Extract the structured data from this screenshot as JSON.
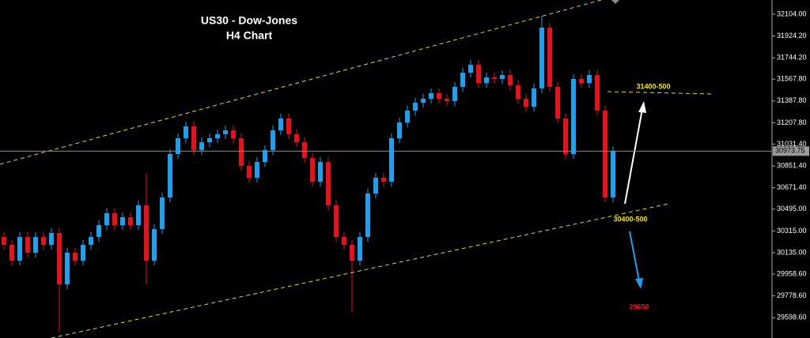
{
  "chart_data": {
    "type": "candlestick",
    "title": "US30 - Dow-Jones",
    "subtitle": "H4 Chart",
    "annotations": {
      "resistance": "31400-500",
      "support": "30400-500",
      "target": "29650"
    },
    "up_color": "#1ea0f0",
    "down_color": "#e8101a",
    "ylim": [
      29431,
      32221
    ],
    "yticks": [
      {
        "value": 32104,
        "label": "32104.00"
      },
      {
        "value": 31924.2,
        "label": "31924.20"
      },
      {
        "value": 31744.2,
        "label": "31744.20"
      },
      {
        "value": 31567.8,
        "label": "31567.80"
      },
      {
        "value": 31387.8,
        "label": "31387.80"
      },
      {
        "value": 31207.8,
        "label": "31207.80"
      },
      {
        "value": 31031.4,
        "label": "31031.40"
      },
      {
        "value": 30851.4,
        "label": "30851.40"
      },
      {
        "value": 30671.4,
        "label": "30671.40"
      },
      {
        "value": 30495,
        "label": "30495.00"
      },
      {
        "value": 30315,
        "label": "30315.00"
      },
      {
        "value": 30135,
        "label": "30135.00"
      },
      {
        "value": 29958.6,
        "label": "29958.60"
      },
      {
        "value": 29778.6,
        "label": "29778.60"
      },
      {
        "value": 29598.6,
        "label": "29598.60"
      }
    ],
    "last_price": 30973.75,
    "open": [
      30265,
      30200,
      30069,
      30265,
      30135,
      30265,
      30200,
      30298,
      29874,
      30135,
      30069,
      30200,
      30265,
      30363,
      30461,
      30363,
      30428,
      30363,
      30526,
      30069,
      30330,
      30591,
      30950,
      31080,
      31178,
      30982,
      31047,
      31080,
      31113,
      31145,
      31080,
      30852,
      30754,
      30884,
      30982,
      31145,
      31243,
      31113,
      31047,
      30917,
      30721,
      30884,
      30526,
      30265,
      30200,
      30069,
      30265,
      30624,
      30754,
      30721,
      31080,
      31210,
      31308,
      31373,
      31406,
      31452,
      31406,
      31386,
      31504,
      31621,
      31686,
      31536,
      31582,
      31569,
      31602,
      31517,
      31406,
      31341,
      31491,
      31993,
      31504,
      31243,
      30950,
      31569,
      31536,
      31602,
      31308,
      30591
    ],
    "high": [
      30305,
      30240,
      30305,
      30305,
      30305,
      30305,
      30338,
      30338,
      30175,
      30175,
      30240,
      30305,
      30403,
      30501,
      30501,
      30468,
      30468,
      30566,
      30787,
      30370,
      30631,
      30990,
      31120,
      31218,
      31218,
      31087,
      31120,
      31153,
      31185,
      31185,
      31120,
      30892,
      30924,
      31022,
      31185,
      31283,
      31283,
      31153,
      31087,
      30957,
      30924,
      30924,
      30566,
      30305,
      30240,
      30305,
      30664,
      30794,
      30794,
      31120,
      31250,
      31348,
      31413,
      31446,
      31492,
      31492,
      31446,
      31544,
      31661,
      31726,
      31726,
      31622,
      31622,
      31642,
      31642,
      31557,
      31446,
      31531,
      32091,
      32033,
      31544,
      31283,
      31609,
      31609,
      31642,
      31642,
      31348,
      31013.75
    ],
    "low": [
      30160,
      30029,
      30029,
      30095,
      30095,
      30160,
      30160,
      29483,
      29834,
      30029,
      30029,
      30160,
      30225,
      30323,
      30323,
      30323,
      30323,
      30323,
      29874,
      30029,
      30290,
      30551,
      30910,
      31040,
      30942,
      30942,
      31007,
      31040,
      31073,
      31040,
      30812,
      30714,
      30714,
      30844,
      30942,
      31105,
      31073,
      31007,
      30877,
      30681,
      30681,
      30486,
      30225,
      30160,
      29646,
      30029,
      30225,
      30584,
      30681,
      30681,
      31040,
      31170,
      31268,
      31333,
      31366,
      31366,
      31346,
      31346,
      31464,
      31581,
      31496,
      31496,
      31529,
      31529,
      31477,
      31366,
      31301,
      31301,
      31451,
      31464,
      31203,
      30910,
      30910,
      31496,
      31496,
      31268,
      30551,
      30551
    ],
    "close": [
      30200,
      30069,
      30265,
      30135,
      30265,
      30200,
      30298,
      29874,
      30135,
      30069,
      30200,
      30265,
      30363,
      30461,
      30363,
      30428,
      30363,
      30526,
      30069,
      30330,
      30591,
      30950,
      31080,
      31178,
      30982,
      31047,
      31080,
      31113,
      31145,
      31080,
      30852,
      30754,
      30884,
      30982,
      31145,
      31243,
      31113,
      31047,
      30917,
      30721,
      30884,
      30526,
      30265,
      30200,
      30069,
      30265,
      30624,
      30754,
      30721,
      31080,
      31210,
      31308,
      31373,
      31406,
      31452,
      31406,
      31386,
      31504,
      31621,
      31686,
      31536,
      31582,
      31569,
      31602,
      31517,
      31406,
      31341,
      31491,
      31993,
      31504,
      31243,
      30950,
      31569,
      31536,
      31602,
      31308,
      30591,
      30973.75
    ]
  }
}
